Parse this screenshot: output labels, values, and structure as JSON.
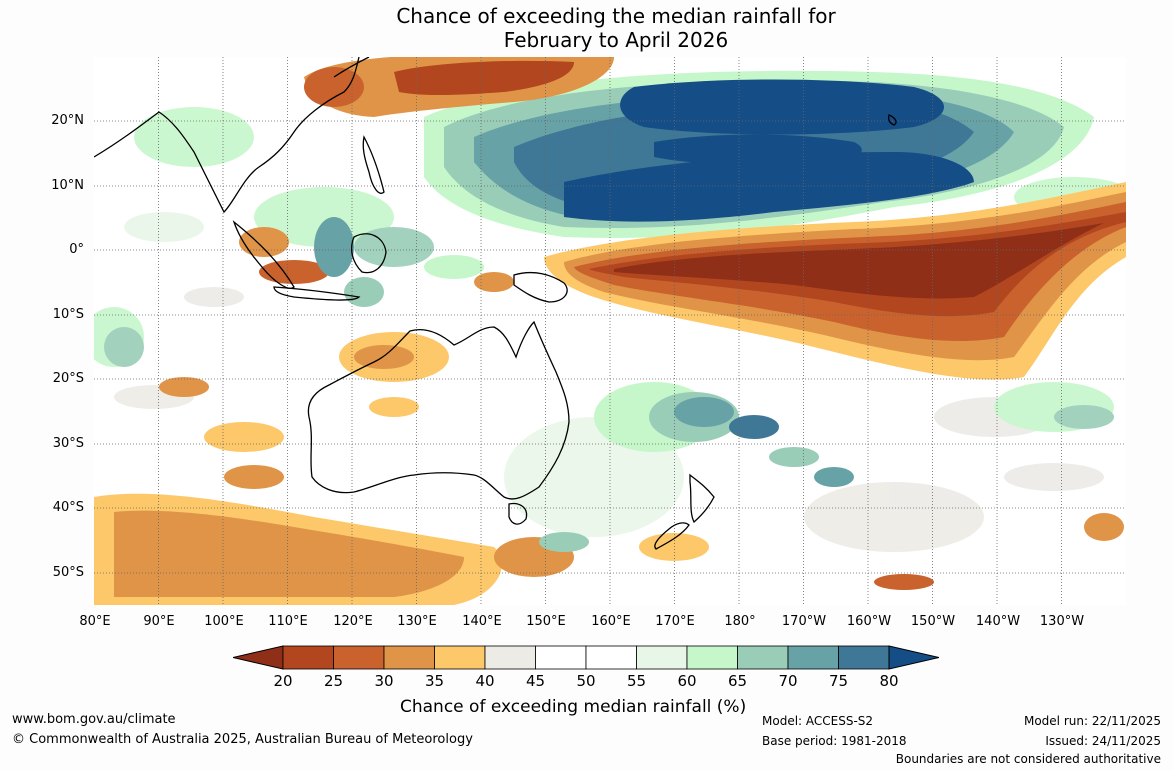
{
  "title": {
    "line1": "Chance of exceeding the median rainfall for",
    "line2": "February to April 2026"
  },
  "map": {
    "latitude_labels": [
      "20°N",
      "10°N",
      "0°",
      "10°S",
      "20°S",
      "30°S",
      "40°S",
      "50°S"
    ],
    "longitude_labels": [
      "80°E",
      "90°E",
      "100°E",
      "110°E",
      "120°E",
      "130°E",
      "140°E",
      "150°E",
      "160°E",
      "170°E",
      "180°",
      "170°W",
      "160°W",
      "150°W",
      "140°W",
      "130°W"
    ],
    "extent": {
      "lon_min": 80,
      "lon_max": 240,
      "lat_min": -55,
      "lat_max": 30
    }
  },
  "colorbar": {
    "ticks": [
      "20",
      "25",
      "30",
      "35",
      "40",
      "45",
      "50",
      "55",
      "60",
      "65",
      "70",
      "75",
      "80"
    ],
    "below_color": "#8f2f18",
    "above_color": "#154d87",
    "bin_colors": [
      "#b2461f",
      "#c9622c",
      "#e09448",
      "#fdc86a",
      "#ecebe6",
      "#ffffff",
      "#ffffff",
      "#e8f6e8",
      "#c6f7cb",
      "#99cdb8",
      "#67a2a6",
      "#3f7796"
    ],
    "title": "Chance of exceeding median rainfall (%)"
  },
  "footer": {
    "website": "www.bom.gov.au/climate",
    "copyright": "© Commonwealth of Australia 2025, Australian Bureau of Meteorology",
    "model": "Model: ACCESS-S2",
    "base_period": "Base period: 1981-2018",
    "model_run": "Model run: 22/11/2025",
    "issued": "Issued: 24/11/2025",
    "disclaimer": "Boundaries are not considered authoritative"
  }
}
